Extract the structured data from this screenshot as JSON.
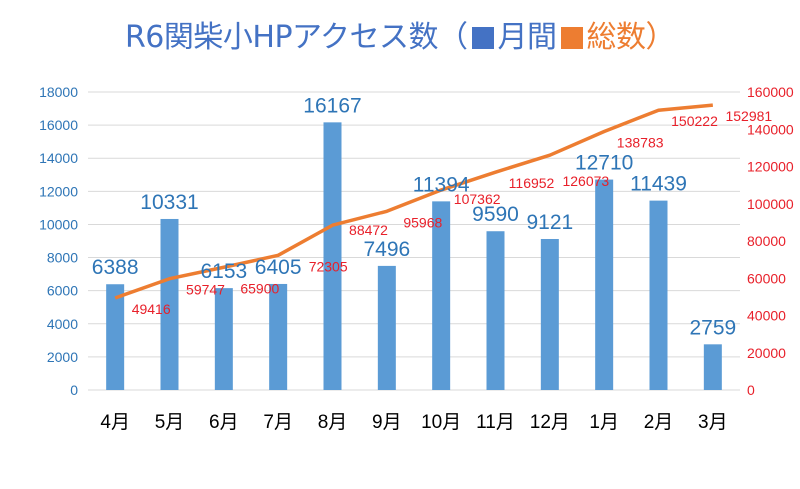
{
  "chart_data": {
    "type": "bar+line",
    "title": "R6関柴小HPアクセス数（",
    "title_close": "）",
    "categories": [
      "4月",
      "5月",
      "6月",
      "7月",
      "8月",
      "9月",
      "10月",
      "11月",
      "12月",
      "1月",
      "2月",
      "3月"
    ],
    "series": [
      {
        "name": "月間",
        "type": "bar",
        "axis": "left",
        "color": "#5b9bd5",
        "label_color": "#2e75b6",
        "values": [
          6388,
          10331,
          6153,
          6405,
          16167,
          7496,
          11394,
          9590,
          9121,
          12710,
          11439,
          2759
        ]
      },
      {
        "name": "総数",
        "type": "line",
        "axis": "right",
        "color": "#ed7d31",
        "label_color": "#e8202a",
        "values": [
          49416,
          59747,
          65900,
          72305,
          88472,
          95968,
          107362,
          116952,
          126073,
          138783,
          150222,
          152981
        ]
      }
    ],
    "y_left": {
      "min": 0,
      "max": 18000,
      "step": 2000,
      "color": "#2e75b6"
    },
    "y_right": {
      "min": 0,
      "max": 160000,
      "step": 20000,
      "color": "#e8202a"
    },
    "grid": true,
    "legend": "in-title"
  }
}
